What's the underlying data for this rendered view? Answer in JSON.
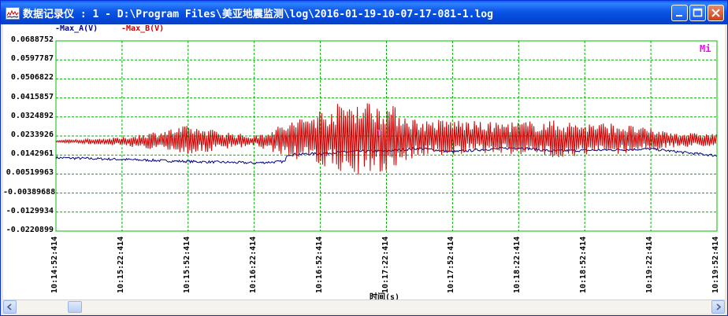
{
  "window": {
    "title": "数据记录仪 : 1 - D:\\Program Files\\美亚地震监测\\log\\2016-01-19-10-07-17-081-1.log"
  },
  "chart_data": {
    "type": "line",
    "title": "",
    "xlabel": "时间(s)",
    "ylabel": "",
    "y_ticks": [
      "0.0688752",
      "0.0597787",
      "0.0506822",
      "0.0415857",
      "0.0324892",
      "0.0233926",
      "0.0142961",
      "0.00519963",
      "-0.00389688",
      "-0.0129934",
      "-0.0220899"
    ],
    "ylim": [
      -0.0220899,
      0.0688752
    ],
    "x_ticks": [
      "10:14:52:414",
      "10:15:22:414",
      "10:15:52:414",
      "10:16:22:414",
      "10:16:52:414",
      "10:17:22:414",
      "10:17:52:414",
      "10:18:22:414",
      "10:18:52:414",
      "10:19:22:414",
      "10:19:52:414"
    ],
    "xlim_seconds": [
      0,
      300
    ],
    "grid": true,
    "legend_position": "top-left",
    "series": [
      {
        "name": "Max_A(V)",
        "color": "#000080",
        "x": [
          0,
          30,
          60,
          90,
          104,
          105,
          120,
          135,
          150,
          165,
          180,
          195,
          210,
          225,
          240,
          255,
          270,
          285,
          300
        ],
        "y": [
          0.013,
          0.0122,
          0.0112,
          0.0105,
          0.0112,
          0.0145,
          0.015,
          0.016,
          0.0162,
          0.0175,
          0.0158,
          0.017,
          0.0178,
          0.0162,
          0.0165,
          0.0168,
          0.0172,
          0.0155,
          0.014
        ]
      },
      {
        "name": "Max_B(V)",
        "color": "#cc0000",
        "x": [
          0,
          30,
          60,
          90,
          120,
          135,
          150,
          165,
          180,
          195,
          210,
          225,
          240,
          255,
          270,
          285,
          300
        ],
        "y_mean": [
          0.0208,
          0.0208,
          0.0215,
          0.021,
          0.0225,
          0.023,
          0.0228,
          0.0225,
          0.0228,
          0.0225,
          0.0225,
          0.022,
          0.022,
          0.0222,
          0.0218,
          0.0215,
          0.0215
        ],
        "y_amplitude": [
          0.0005,
          0.002,
          0.007,
          0.0025,
          0.014,
          0.0185,
          0.017,
          0.0085,
          0.009,
          0.0075,
          0.008,
          0.009,
          0.008,
          0.0075,
          0.005,
          0.0035,
          0.003
        ]
      }
    ]
  },
  "annotations": {
    "corner_mark": "Mi",
    "mid_mark": "T"
  },
  "colors": {
    "grid": "#00b000",
    "plot_border": "#00c000"
  }
}
